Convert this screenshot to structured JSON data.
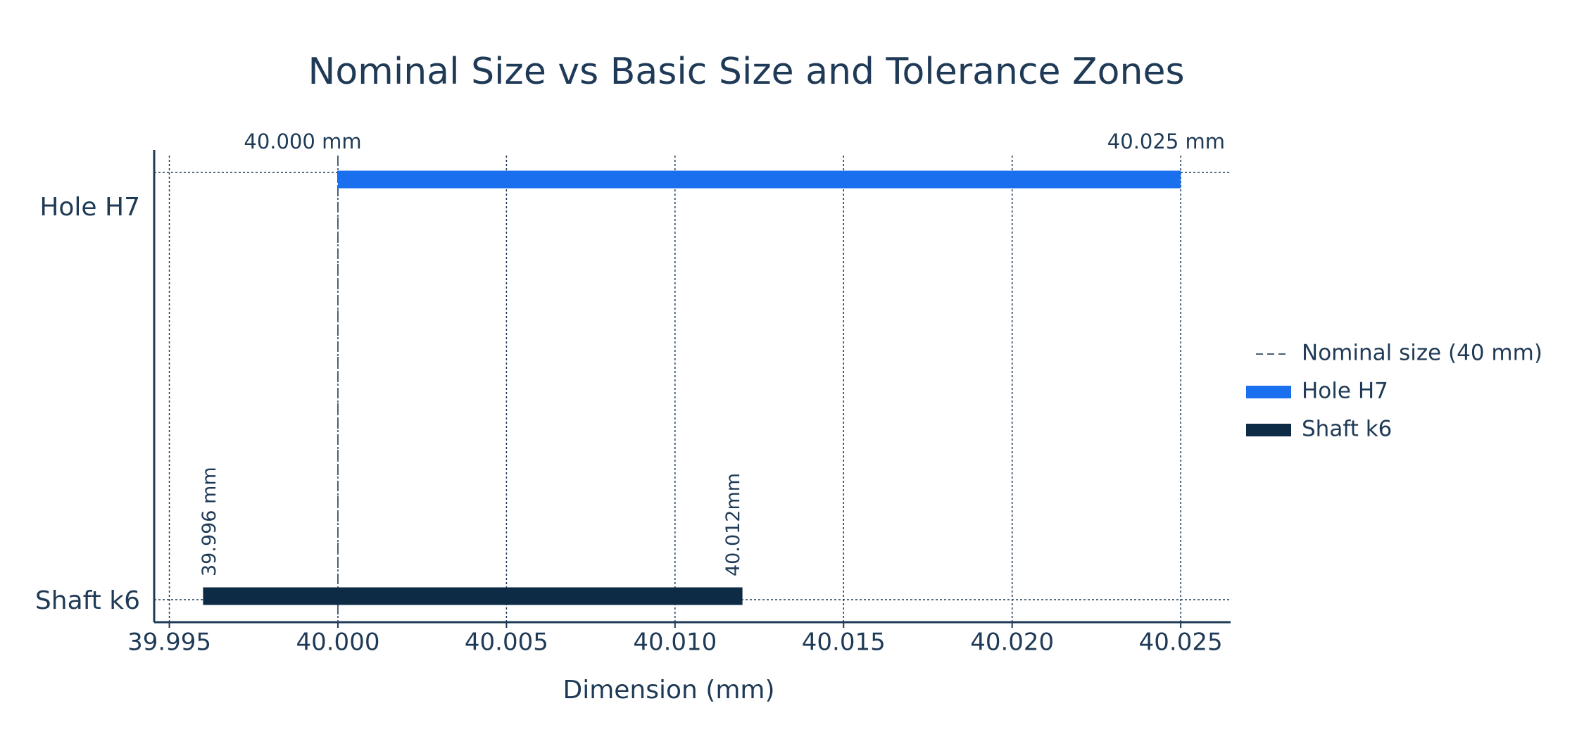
{
  "chart_data": {
    "type": "range-bar",
    "title": "Nominal Size vs Basic Size and Tolerance Zones",
    "x_label": "Dimension (mm)",
    "categories": [
      "Hole H7",
      "Shaft k6"
    ],
    "series": [
      {
        "name": "Hole H7",
        "color": "#1a6fef",
        "start": 40.0,
        "end": 40.025,
        "value_labels": [
          "40.000 mm",
          "40.025 mm"
        ]
      },
      {
        "name": "Shaft k6",
        "color": "#0d2b45",
        "start": 39.996,
        "end": 40.012,
        "value_labels": [
          "39.996 mm",
          "40.012mm"
        ]
      }
    ],
    "reference_line": {
      "name": "Nominal size (40 mm)",
      "value": 40.0,
      "color": "#4a5f78"
    },
    "xlim": [
      39.99455,
      40.02648
    ],
    "xticks": [
      39.995,
      {
        "value": 40.0,
        "label": "40.000"
      },
      40.005,
      {
        "value": 40.01,
        "label": "40.010"
      },
      40.015,
      {
        "value": 40.02,
        "label": "40.020"
      },
      40.025
    ],
    "grid": true
  }
}
